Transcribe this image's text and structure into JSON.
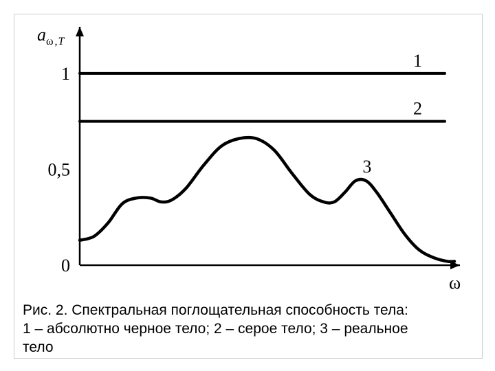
{
  "figure": {
    "type": "line",
    "y_axis_title": "aω ,T",
    "x_axis_title": "ω",
    "y_ticks": [
      {
        "value": 0,
        "label": "0"
      },
      {
        "value": 0.5,
        "label": "0,5"
      },
      {
        "value": 1,
        "label": "1"
      }
    ],
    "ylim": [
      0,
      1.2
    ],
    "xlim": [
      0,
      10.6
    ],
    "series_labels": {
      "s1": "1",
      "s2": "2",
      "s3": "3"
    },
    "line1": {
      "y": 1.0,
      "color": "#000000",
      "width": 4
    },
    "line2": {
      "y": 0.75,
      "color": "#000000",
      "width": 4
    },
    "curve3": {
      "color": "#000000",
      "width": 4.5,
      "points": [
        [
          0.0,
          0.13
        ],
        [
          0.4,
          0.15
        ],
        [
          0.8,
          0.22
        ],
        [
          1.2,
          0.32
        ],
        [
          1.6,
          0.35
        ],
        [
          2.0,
          0.35
        ],
        [
          2.3,
          0.33
        ],
        [
          2.6,
          0.34
        ],
        [
          3.0,
          0.4
        ],
        [
          3.5,
          0.52
        ],
        [
          4.0,
          0.62
        ],
        [
          4.5,
          0.66
        ],
        [
          5.0,
          0.66
        ],
        [
          5.5,
          0.6
        ],
        [
          6.0,
          0.48
        ],
        [
          6.5,
          0.37
        ],
        [
          6.9,
          0.33
        ],
        [
          7.2,
          0.33
        ],
        [
          7.5,
          0.38
        ],
        [
          7.8,
          0.44
        ],
        [
          8.1,
          0.44
        ],
        [
          8.4,
          0.38
        ],
        [
          8.8,
          0.27
        ],
        [
          9.2,
          0.16
        ],
        [
          9.6,
          0.08
        ],
        [
          10.0,
          0.04
        ],
        [
          10.4,
          0.02
        ],
        [
          10.6,
          0.02
        ]
      ]
    },
    "axis_color": "#000000",
    "axis_width": 2.5,
    "background_color": "#ffffff",
    "label_fontsize": 26,
    "tick_fontsize": 26,
    "series_label_fontsize": 26,
    "caption_fontsize": 21
  },
  "caption": {
    "line1": "Рис. 2. Спектральная поглощательная способность тела:",
    "line2": "1 – абсолютно черное тело; 2 – серое тело; 3 – реальное",
    "line3": "тело"
  }
}
